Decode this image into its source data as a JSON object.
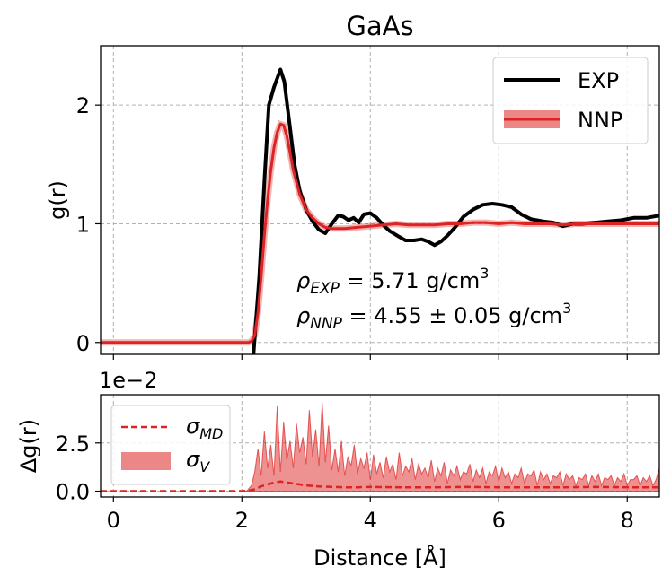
{
  "chart_data": [
    {
      "id": "top",
      "type": "line",
      "title": "GaAs",
      "ylabel": "g(r)",
      "xlabel": "",
      "xlim": [
        -0.2,
        8.5
      ],
      "ylim": [
        -0.1,
        2.5
      ],
      "xticks": [
        0,
        2,
        4,
        6,
        8
      ],
      "yticks": [
        0,
        1,
        2
      ],
      "yticklabels": [
        "0",
        "1",
        "2"
      ],
      "grid": true,
      "legend": {
        "placement": "top-right"
      },
      "annotations": [
        {
          "sym": "ρ",
          "sub": "EXP",
          "rest": " = 5.71 g/cm",
          "sup": "3"
        },
        {
          "sym": "ρ",
          "sub": "NNP",
          "rest": " = 4.55 ± 0.05 g/cm",
          "sup": "3"
        }
      ],
      "series": [
        {
          "name": "EXP",
          "color": "#000000",
          "x": [
            2.18,
            2.27,
            2.35,
            2.42,
            2.5,
            2.6,
            2.66,
            2.74,
            2.82,
            2.9,
            3.0,
            3.1,
            3.2,
            3.3,
            3.4,
            3.5,
            3.58,
            3.66,
            3.74,
            3.82,
            3.9,
            4.0,
            4.1,
            4.2,
            4.3,
            4.42,
            4.55,
            4.68,
            4.8,
            4.9,
            5.0,
            5.1,
            5.2,
            5.32,
            5.45,
            5.6,
            5.75,
            5.9,
            6.05,
            6.2,
            6.35,
            6.5,
            6.7,
            6.85,
            7.0,
            7.15,
            7.3,
            7.5,
            7.7,
            7.9,
            8.1,
            8.3,
            8.5
          ],
          "y": [
            -0.1,
            0.55,
            1.35,
            2.0,
            2.15,
            2.3,
            2.2,
            1.85,
            1.5,
            1.28,
            1.12,
            1.02,
            0.95,
            0.92,
            1.0,
            1.07,
            1.06,
            1.03,
            1.05,
            1.01,
            1.08,
            1.09,
            1.05,
            0.99,
            0.94,
            0.9,
            0.86,
            0.86,
            0.87,
            0.85,
            0.82,
            0.85,
            0.9,
            0.97,
            1.06,
            1.12,
            1.16,
            1.17,
            1.16,
            1.14,
            1.08,
            1.04,
            1.02,
            1.01,
            0.98,
            1.0,
            1.0,
            1.01,
            1.02,
            1.03,
            1.05,
            1.05,
            1.07
          ]
        },
        {
          "name": "NNP",
          "color": "#dd2424",
          "x": [
            -0.2,
            0.5,
            1.0,
            1.5,
            2.0,
            2.1,
            2.15,
            2.2,
            2.25,
            2.3,
            2.35,
            2.4,
            2.45,
            2.5,
            2.55,
            2.6,
            2.65,
            2.7,
            2.75,
            2.8,
            2.9,
            3.0,
            3.1,
            3.2,
            3.3,
            3.4,
            3.5,
            3.6,
            3.8,
            4.0,
            4.2,
            4.4,
            4.6,
            4.8,
            5.0,
            5.2,
            5.4,
            5.6,
            5.8,
            6.0,
            6.2,
            6.4,
            6.6,
            6.8,
            7.0,
            7.2,
            7.5,
            8.0,
            8.5
          ],
          "y": [
            0.0,
            0.0,
            0.0,
            0.0,
            0.0,
            0.0,
            0.01,
            0.06,
            0.25,
            0.55,
            0.9,
            1.2,
            1.45,
            1.64,
            1.77,
            1.84,
            1.83,
            1.74,
            1.6,
            1.45,
            1.25,
            1.12,
            1.05,
            1.0,
            0.97,
            0.96,
            0.96,
            0.96,
            0.97,
            0.98,
            0.99,
            1.0,
            0.99,
            0.99,
            0.99,
            1.0,
            1.0,
            1.01,
            1.01,
            1.0,
            1.01,
            1.0,
            1.0,
            1.0,
            0.99,
            1.0,
            1.0,
            1.0,
            1.0
          ]
        }
      ]
    },
    {
      "id": "bottom",
      "type": "area",
      "title": "",
      "ylabel": "Δg(r)",
      "xlabel": "Distance [Å]",
      "offset_label": "1e−2",
      "xlim": [
        -0.2,
        8.5
      ],
      "ylim": [
        -0.3,
        5.0
      ],
      "xticks": [
        0,
        2,
        4,
        6,
        8
      ],
      "xticklabels": [
        "0",
        "2",
        "4",
        "6",
        "8"
      ],
      "yticks": [
        0.0,
        2.5
      ],
      "yticklabels": [
        "0.0",
        "2.5"
      ],
      "grid": true,
      "legend": {
        "placement": "top-left"
      },
      "series": [
        {
          "name": "σ_MD",
          "label_sym": "σ",
          "label_sub": "MD",
          "style": "dashed",
          "color": "#dd2424",
          "x": [
            -0.2,
            1.0,
            2.0,
            2.1,
            2.2,
            2.3,
            2.4,
            2.5,
            2.6,
            2.7,
            2.8,
            2.9,
            3.0,
            3.2,
            3.4,
            3.6,
            3.8,
            4.0,
            4.5,
            5.0,
            5.5,
            6.0,
            6.5,
            7.0,
            7.5,
            8.0,
            8.5
          ],
          "y": [
            0.0,
            0.0,
            0.0,
            0.02,
            0.1,
            0.25,
            0.35,
            0.45,
            0.5,
            0.45,
            0.4,
            0.35,
            0.3,
            0.25,
            0.22,
            0.2,
            0.2,
            0.22,
            0.2,
            0.2,
            0.22,
            0.2,
            0.2,
            0.2,
            0.22,
            0.2,
            0.2
          ]
        },
        {
          "name": "σ_V",
          "label_sym": "σ",
          "label_sub": "V",
          "style": "band",
          "color": "#dd2424",
          "x": [
            2.0,
            2.08,
            2.15,
            2.2,
            2.25,
            2.3,
            2.35,
            2.4,
            2.45,
            2.5,
            2.55,
            2.6,
            2.65,
            2.7,
            2.75,
            2.8,
            2.85,
            2.9,
            2.95,
            3.0,
            3.05,
            3.1,
            3.15,
            3.2,
            3.25,
            3.3,
            3.35,
            3.4,
            3.45,
            3.5,
            3.55,
            3.6,
            3.65,
            3.7,
            3.75,
            3.8,
            3.85,
            3.9,
            3.95,
            4.0,
            4.05,
            4.1,
            4.15,
            4.2,
            4.25,
            4.3,
            4.35,
            4.4,
            4.45,
            4.5,
            4.55,
            4.6,
            4.65,
            4.7,
            4.75,
            4.8,
            4.85,
            4.9,
            4.95,
            5.0,
            5.05,
            5.1,
            5.15,
            5.2,
            5.25,
            5.3,
            5.35,
            5.4,
            5.45,
            5.5,
            5.55,
            5.6,
            5.65,
            5.7,
            5.75,
            5.8,
            5.85,
            5.9,
            5.95,
            6.0,
            6.05,
            6.1,
            6.15,
            6.2,
            6.25,
            6.3,
            6.35,
            6.4,
            6.45,
            6.5,
            6.55,
            6.6,
            6.65,
            6.7,
            6.75,
            6.8,
            6.85,
            6.9,
            6.95,
            7.0,
            7.05,
            7.1,
            7.15,
            7.2,
            7.25,
            7.3,
            7.35,
            7.4,
            7.45,
            7.5,
            7.55,
            7.6,
            7.65,
            7.7,
            7.75,
            7.8,
            7.85,
            7.9,
            7.95,
            8.0,
            8.05,
            8.1,
            8.15,
            8.2,
            8.25,
            8.3,
            8.35,
            8.4,
            8.45,
            8.5
          ],
          "y": [
            0.0,
            0.02,
            0.3,
            1.0,
            2.2,
            0.8,
            3.1,
            1.2,
            2.4,
            0.8,
            4.4,
            1.0,
            3.6,
            1.6,
            2.6,
            1.2,
            3.5,
            2.0,
            2.8,
            1.4,
            4.2,
            1.8,
            3.2,
            1.3,
            4.6,
            1.5,
            3.4,
            1.1,
            2.2,
            1.0,
            2.6,
            0.8,
            1.8,
            1.3,
            2.4,
            0.9,
            1.7,
            1.2,
            2.0,
            0.6,
            1.9,
            0.9,
            1.5,
            0.7,
            1.8,
            1.0,
            1.4,
            0.6,
            2.0,
            0.8,
            1.3,
            1.0,
            1.7,
            0.6,
            1.4,
            0.9,
            1.2,
            0.7,
            1.6,
            0.5,
            1.2,
            0.8,
            1.5,
            0.4,
            1.1,
            0.8,
            1.3,
            0.6,
            1.0,
            0.9,
            1.4,
            0.5,
            1.1,
            0.7,
            1.2,
            0.4,
            1.0,
            0.8,
            1.3,
            0.5,
            1.2,
            0.7,
            1.0,
            0.4,
            0.9,
            0.7,
            1.2,
            0.4,
            0.9,
            0.8,
            1.1,
            0.3,
            1.0,
            0.6,
            0.9,
            0.4,
            0.8,
            0.7,
            1.0,
            0.3,
            0.9,
            0.6,
            0.8,
            0.3,
            0.7,
            0.6,
            0.9,
            0.3,
            0.8,
            0.5,
            0.9,
            0.3,
            0.7,
            0.6,
            0.8,
            0.3,
            0.7,
            0.5,
            0.9,
            0.3,
            0.6,
            0.6,
            0.8,
            0.3,
            0.7,
            0.5,
            0.8,
            0.3,
            0.6,
            1.2
          ]
        }
      ]
    }
  ]
}
